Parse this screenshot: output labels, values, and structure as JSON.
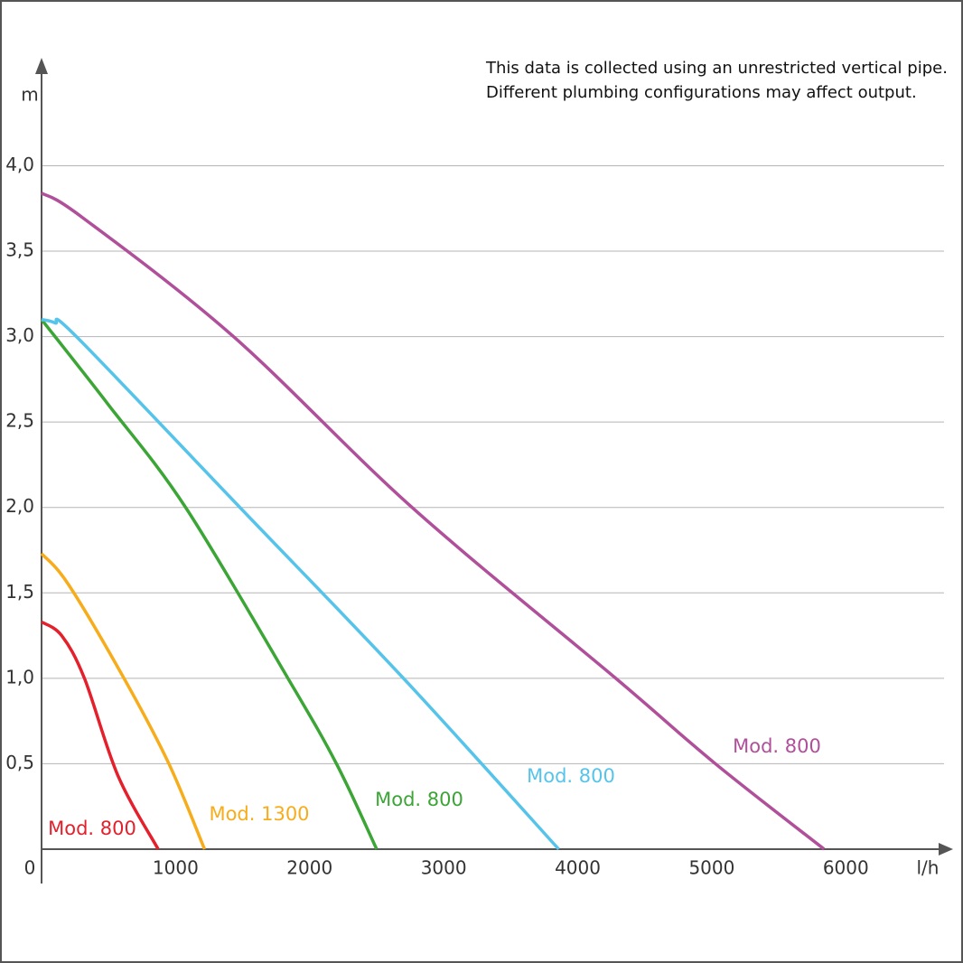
{
  "chart_data": {
    "type": "line",
    "annotation": [
      "This data is collected using an unrestricted vertical pipe.",
      "Different plumbing configurations may affect output."
    ],
    "y_label": "m",
    "x_label": "l/h",
    "xlim": [
      0,
      6800
    ],
    "ylim": [
      0,
      4.6
    ],
    "xticks": [
      0,
      1000,
      2000,
      3000,
      4000,
      5000,
      6000
    ],
    "yticks": [
      {
        "value": 0.5,
        "label": "0,5"
      },
      {
        "value": 1.0,
        "label": "1,0"
      },
      {
        "value": 1.5,
        "label": "1,5"
      },
      {
        "value": 2.0,
        "label": "2,0"
      },
      {
        "value": 2.5,
        "label": "2,5"
      },
      {
        "value": 3.0,
        "label": "3,0"
      },
      {
        "value": 3.5,
        "label": "3,5"
      },
      {
        "value": 4.0,
        "label": "4,0"
      }
    ],
    "grid": true,
    "series": [
      {
        "name": "Mod. 800",
        "color": "#e3202b",
        "x": [
          0,
          150,
          320,
          570,
          870
        ],
        "values": [
          1.33,
          1.25,
          1.0,
          0.43,
          0
        ]
      },
      {
        "name": "Mod. 1300",
        "color": "#f7ac1c",
        "x": [
          0,
          200,
          615,
          950,
          1216
        ],
        "values": [
          1.73,
          1.55,
          1.0,
          0.5,
          0
        ]
      },
      {
        "name": "Mod. 800",
        "color": "#3ba535",
        "x": [
          0,
          500,
          1075,
          1838,
          2200,
          2500
        ],
        "values": [
          3.1,
          2.6,
          2.0,
          1.0,
          0.5,
          0
        ]
      },
      {
        "name": "Mod. 800",
        "color": "#56c4ea",
        "x": [
          0,
          100,
          260,
          1480,
          2700,
          3858
        ],
        "values": [
          3.1,
          3.08,
          3.0,
          2.0,
          1.0,
          0
        ]
      },
      {
        "name": "Mod. 800",
        "color": "#b04f9a",
        "x": [
          0,
          300,
          1432,
          2764,
          4284,
          5027,
          5838
        ],
        "values": [
          3.84,
          3.7,
          3.0,
          2.0,
          1.0,
          0.5,
          0
        ]
      }
    ]
  }
}
